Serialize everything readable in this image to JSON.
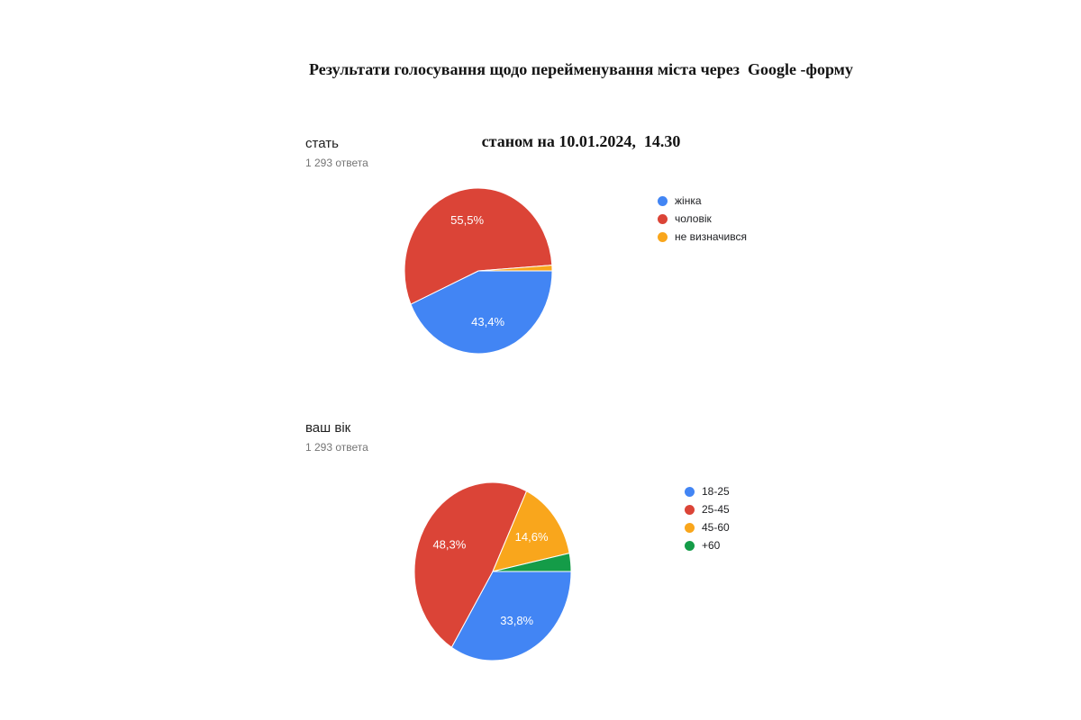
{
  "page_title": {
    "line1": "Результати голосування щодо перейменування міста через  Google -форму",
    "line2": "станом на 10.01.2024,  14.30"
  },
  "palette": {
    "blue": "#4285F4",
    "red": "#DB4437",
    "orange": "#F9A61C",
    "green": "#149C48",
    "question_text": "#212121",
    "responses_text": "#757575",
    "legend_text": "#202124",
    "slice_label_text": "#ffffff"
  },
  "chart_data": [
    {
      "type": "pie",
      "title": "стать",
      "subtitle": "1 293 ответа",
      "total_responses": 1293,
      "categories": [
        "жінка",
        "чоловік",
        "не визначився"
      ],
      "values": [
        43.4,
        55.5,
        1.1
      ],
      "value_labels": [
        "43,4%",
        "55,5%",
        ""
      ],
      "colors": [
        "#4285F4",
        "#DB4437",
        "#F9A61C"
      ],
      "legend_position": "right",
      "start_angle_deg": 0,
      "direction": "clockwise"
    },
    {
      "type": "pie",
      "title": "ваш вік",
      "subtitle": "1 293 ответа",
      "total_responses": 1293,
      "categories": [
        "18-25",
        "25-45",
        "45-60",
        "+60"
      ],
      "values": [
        33.8,
        48.3,
        14.6,
        3.3
      ],
      "value_labels": [
        "33,8%",
        "48,3%",
        "14,6%",
        ""
      ],
      "colors": [
        "#4285F4",
        "#DB4437",
        "#F9A61C",
        "#149C48"
      ],
      "legend_position": "right",
      "start_angle_deg": 0,
      "direction": "clockwise"
    }
  ]
}
